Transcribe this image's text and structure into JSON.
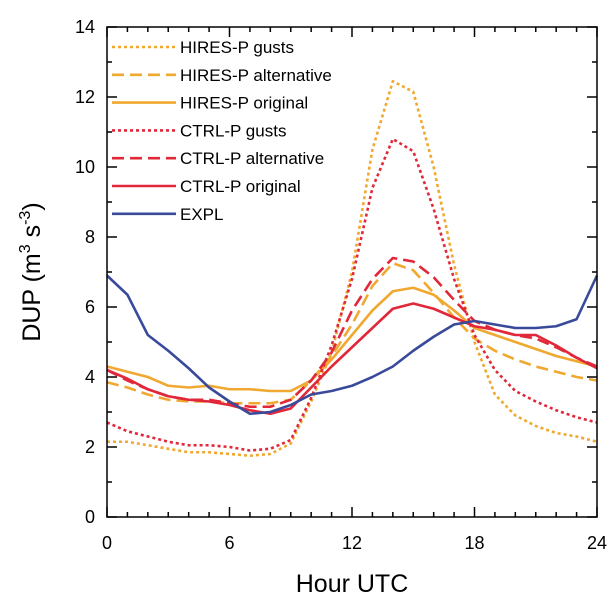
{
  "chart_data": {
    "type": "line",
    "x_label": "Hour UTC",
    "y_label": [
      "DUP (m",
      "3",
      " s",
      "-3",
      ")"
    ],
    "x": [
      0,
      1,
      2,
      3,
      4,
      5,
      6,
      7,
      8,
      9,
      10,
      11,
      12,
      13,
      14,
      15,
      16,
      17,
      18,
      19,
      20,
      21,
      22,
      23,
      24
    ],
    "xlim": [
      0,
      24
    ],
    "xticks": [
      0,
      6,
      12,
      18,
      24
    ],
    "xminorticks": [
      1,
      2,
      3,
      4,
      5,
      7,
      8,
      9,
      10,
      11,
      13,
      14,
      15,
      16,
      17,
      19,
      20,
      21,
      22,
      23
    ],
    "ylim": [
      0,
      14
    ],
    "yticks": [
      0,
      2,
      4,
      6,
      8,
      10,
      12,
      14
    ],
    "yminorticks": [
      1,
      3,
      5,
      7,
      9,
      11,
      13
    ],
    "legend": "upper left",
    "series": [
      {
        "name": "HIRES-P gusts",
        "color": "#f0a830",
        "dash": "dotted",
        "values": [
          2.15,
          2.15,
          2.05,
          1.95,
          1.85,
          1.85,
          1.8,
          1.75,
          1.8,
          2.1,
          3.3,
          4.7,
          7.0,
          10.5,
          12.45,
          12.15,
          10.0,
          7.2,
          5.0,
          3.5,
          2.9,
          2.6,
          2.4,
          2.3,
          2.15
        ]
      },
      {
        "name": "HIRES-P alternative",
        "color": "#f0a830",
        "dash": "dashed",
        "values": [
          3.85,
          3.7,
          3.5,
          3.35,
          3.3,
          3.3,
          3.25,
          3.25,
          3.25,
          3.35,
          3.9,
          4.6,
          5.5,
          6.6,
          7.25,
          7.05,
          6.4,
          5.7,
          5.1,
          4.75,
          4.5,
          4.3,
          4.15,
          4.0,
          3.9
        ]
      },
      {
        "name": "HIRES-P original",
        "color": "#f0a830",
        "dash": "solid",
        "values": [
          4.3,
          4.15,
          4.0,
          3.75,
          3.7,
          3.75,
          3.65,
          3.65,
          3.6,
          3.6,
          3.9,
          4.5,
          5.2,
          5.9,
          6.45,
          6.55,
          6.35,
          5.9,
          5.4,
          5.2,
          5.0,
          4.8,
          4.6,
          4.45,
          4.3
        ]
      },
      {
        "name": "CTRL-P gusts",
        "color": "#e0283a",
        "dash": "dotted",
        "values": [
          2.7,
          2.45,
          2.3,
          2.15,
          2.05,
          2.05,
          2.0,
          1.9,
          1.95,
          2.2,
          3.4,
          4.9,
          6.8,
          9.4,
          10.8,
          10.45,
          8.8,
          6.8,
          5.2,
          4.2,
          3.6,
          3.3,
          3.05,
          2.85,
          2.7
        ]
      },
      {
        "name": "CTRL-P alternative",
        "color": "#e0283a",
        "dash": "dashed",
        "values": [
          4.2,
          3.9,
          3.65,
          3.45,
          3.35,
          3.35,
          3.25,
          3.15,
          3.15,
          3.35,
          3.9,
          4.7,
          5.9,
          6.8,
          7.4,
          7.3,
          6.85,
          6.2,
          5.6,
          5.35,
          5.2,
          5.1,
          4.85,
          4.55,
          4.3
        ]
      },
      {
        "name": "CTRL-P original",
        "color": "#e0283a",
        "dash": "solid",
        "values": [
          4.2,
          3.95,
          3.65,
          3.45,
          3.35,
          3.3,
          3.2,
          3.05,
          2.95,
          3.1,
          3.7,
          4.3,
          4.85,
          5.4,
          5.95,
          6.1,
          5.95,
          5.7,
          5.45,
          5.35,
          5.2,
          5.2,
          4.9,
          4.55,
          4.25
        ]
      },
      {
        "name": "EXPL",
        "color": "#3a4a9a",
        "dash": "solid",
        "values": [
          6.9,
          6.35,
          5.2,
          4.75,
          4.25,
          3.7,
          3.3,
          2.95,
          3.0,
          3.2,
          3.5,
          3.6,
          3.75,
          4.0,
          4.3,
          4.75,
          5.15,
          5.5,
          5.6,
          5.5,
          5.4,
          5.4,
          5.45,
          5.65,
          6.9
        ]
      }
    ]
  }
}
